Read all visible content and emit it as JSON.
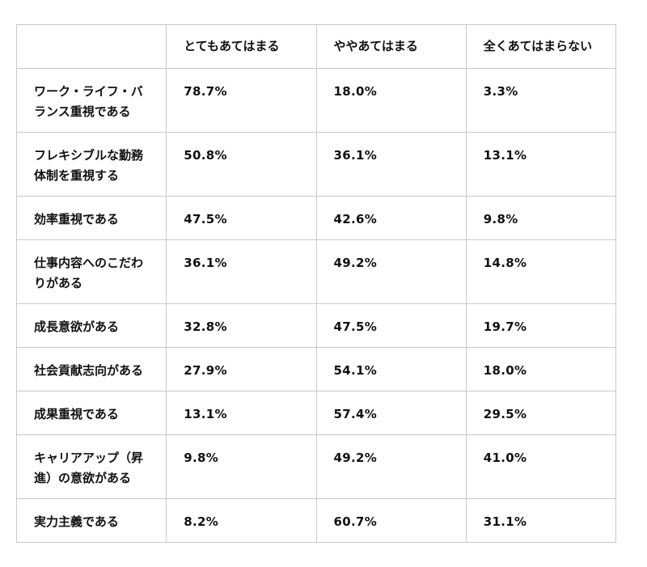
{
  "table": {
    "headers": [
      "",
      "とてもあてはまる",
      "ややあてはまる",
      "全くあてはまらない"
    ],
    "rows": [
      {
        "label": "ワーク・ライフ・バランス重視である",
        "values": [
          "78.7%",
          "18.0%",
          "3.3%"
        ]
      },
      {
        "label": "フレキシブルな勤務体制を重視する",
        "values": [
          "50.8%",
          "36.1%",
          "13.1%"
        ]
      },
      {
        "label": "効率重視である",
        "values": [
          "47.5%",
          "42.6%",
          "9.8%"
        ]
      },
      {
        "label": "仕事内容へのこだわりがある",
        "values": [
          "36.1%",
          "49.2%",
          "14.8%"
        ]
      },
      {
        "label": "成長意欲がある",
        "values": [
          "32.8%",
          "47.5%",
          "19.7%"
        ]
      },
      {
        "label": "社会貢献志向がある",
        "values": [
          "27.9%",
          "54.1%",
          "18.0%"
        ]
      },
      {
        "label": "成果重視である",
        "values": [
          "13.1%",
          "57.4%",
          "29.5%"
        ]
      },
      {
        "label": "キャリアアップ（昇進）の意欲がある",
        "values": [
          "9.8%",
          "49.2%",
          "41.0%"
        ]
      },
      {
        "label": "実力主義である",
        "values": [
          "8.2%",
          "60.7%",
          "31.1%"
        ]
      }
    ]
  }
}
